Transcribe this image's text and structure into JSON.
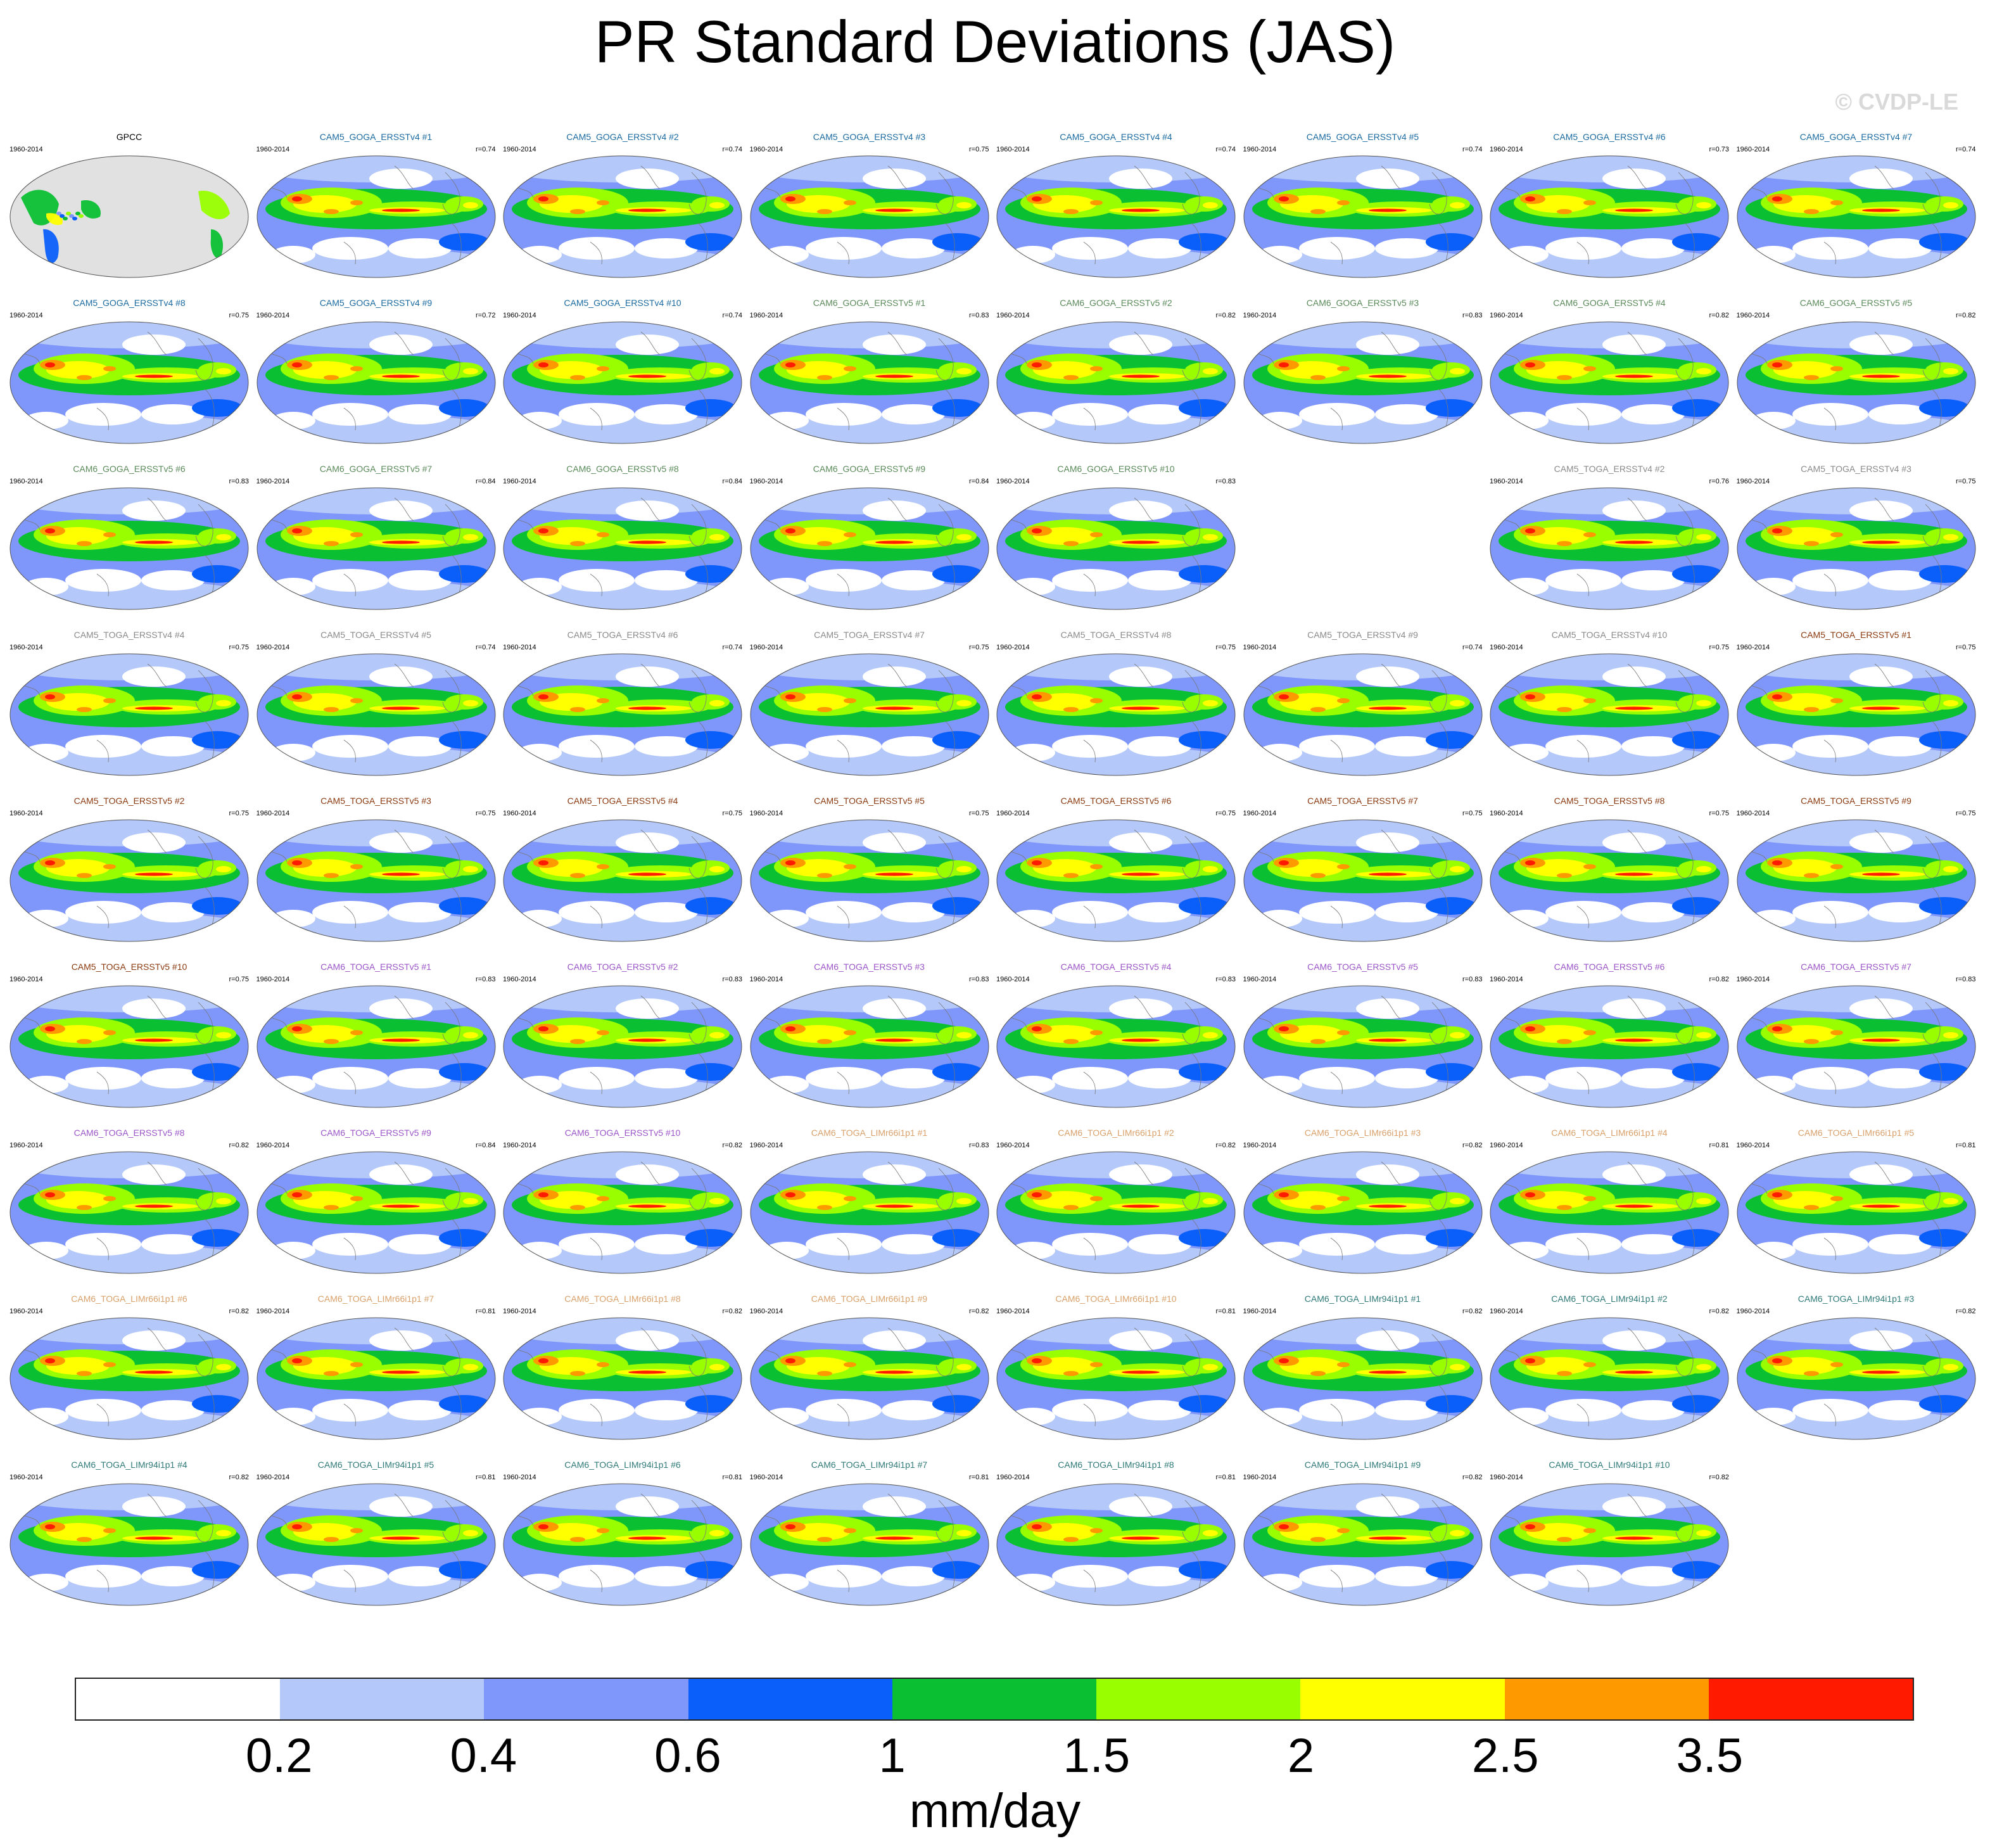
{
  "title": "PR Standard Deviations (JAS)",
  "watermark": "© CVDP-LE",
  "period": "1960-2014",
  "panels": [
    {
      "name": "GPCC",
      "r": "",
      "color": "#000000",
      "obs": true
    },
    {
      "name": "CAM5_GOGA_ERSSTv4 #1",
      "r": "r=0.74",
      "color": "#1a6aa0"
    },
    {
      "name": "CAM5_GOGA_ERSSTv4 #2",
      "r": "r=0.74",
      "color": "#1a6aa0"
    },
    {
      "name": "CAM5_GOGA_ERSSTv4 #3",
      "r": "r=0.75",
      "color": "#1a6aa0"
    },
    {
      "name": "CAM5_GOGA_ERSSTv4 #4",
      "r": "r=0.74",
      "color": "#1a6aa0"
    },
    {
      "name": "CAM5_GOGA_ERSSTv4 #5",
      "r": "r=0.74",
      "color": "#1a6aa0"
    },
    {
      "name": "CAM5_GOGA_ERSSTv4 #6",
      "r": "r=0.73",
      "color": "#1a6aa0"
    },
    {
      "name": "CAM5_GOGA_ERSSTv4 #7",
      "r": "r=0.74",
      "color": "#1a6aa0"
    },
    {
      "name": "CAM5_GOGA_ERSSTv4 #8",
      "r": "r=0.75",
      "color": "#1a6aa0"
    },
    {
      "name": "CAM5_GOGA_ERSSTv4 #9",
      "r": "r=0.72",
      "color": "#1a6aa0"
    },
    {
      "name": "CAM5_GOGA_ERSSTv4 #10",
      "r": "r=0.74",
      "color": "#1a6aa0"
    },
    {
      "name": "CAM6_GOGA_ERSSTv5 #1",
      "r": "r=0.83",
      "color": "#5a8a5a"
    },
    {
      "name": "CAM6_GOGA_ERSSTv5 #2",
      "r": "r=0.82",
      "color": "#5a8a5a"
    },
    {
      "name": "CAM6_GOGA_ERSSTv5 #3",
      "r": "r=0.83",
      "color": "#5a8a5a"
    },
    {
      "name": "CAM6_GOGA_ERSSTv5 #4",
      "r": "r=0.82",
      "color": "#5a8a5a"
    },
    {
      "name": "CAM6_GOGA_ERSSTv5 #5",
      "r": "r=0.82",
      "color": "#5a8a5a"
    },
    {
      "name": "CAM6_GOGA_ERSSTv5 #6",
      "r": "r=0.83",
      "color": "#5a8a5a"
    },
    {
      "name": "CAM6_GOGA_ERSSTv5 #7",
      "r": "r=0.84",
      "color": "#5a8a5a"
    },
    {
      "name": "CAM6_GOGA_ERSSTv5 #8",
      "r": "r=0.84",
      "color": "#5a8a5a"
    },
    {
      "name": "CAM6_GOGA_ERSSTv5 #9",
      "r": "r=0.84",
      "color": "#5a8a5a"
    },
    {
      "name": "CAM6_GOGA_ERSSTv5 #10",
      "r": "r=0.83",
      "color": "#5a8a5a"
    },
    {
      "name": "",
      "r": "",
      "color": "",
      "blank": true
    },
    {
      "name": "CAM5_TOGA_ERSSTv4 #2",
      "r": "r=0.76",
      "color": "#8a8a8a"
    },
    {
      "name": "CAM5_TOGA_ERSSTv4 #3",
      "r": "r=0.75",
      "color": "#8a8a8a"
    },
    {
      "name": "CAM5_TOGA_ERSSTv4 #4",
      "r": "r=0.75",
      "color": "#8a8a8a"
    },
    {
      "name": "CAM5_TOGA_ERSSTv4 #5",
      "r": "r=0.74",
      "color": "#8a8a8a"
    },
    {
      "name": "CAM5_TOGA_ERSSTv4 #6",
      "r": "r=0.74",
      "color": "#8a8a8a"
    },
    {
      "name": "CAM5_TOGA_ERSSTv4 #7",
      "r": "r=0.75",
      "color": "#8a8a8a"
    },
    {
      "name": "CAM5_TOGA_ERSSTv4 #8",
      "r": "r=0.75",
      "color": "#8a8a8a"
    },
    {
      "name": "CAM5_TOGA_ERSSTv4 #9",
      "r": "r=0.74",
      "color": "#8a8a8a"
    },
    {
      "name": "CAM5_TOGA_ERSSTv4 #10",
      "r": "r=0.75",
      "color": "#8a8a8a"
    },
    {
      "name": "CAM5_TOGA_ERSSTv5 #1",
      "r": "r=0.75",
      "color": "#8b3a10"
    },
    {
      "name": "CAM5_TOGA_ERSSTv5 #2",
      "r": "r=0.75",
      "color": "#8b3a10"
    },
    {
      "name": "CAM5_TOGA_ERSSTv5 #3",
      "r": "r=0.75",
      "color": "#8b3a10"
    },
    {
      "name": "CAM5_TOGA_ERSSTv5 #4",
      "r": "r=0.75",
      "color": "#8b3a10"
    },
    {
      "name": "CAM5_TOGA_ERSSTv5 #5",
      "r": "r=0.75",
      "color": "#8b3a10"
    },
    {
      "name": "CAM5_TOGA_ERSSTv5 #6",
      "r": "r=0.75",
      "color": "#8b3a10"
    },
    {
      "name": "CAM5_TOGA_ERSSTv5 #7",
      "r": "r=0.75",
      "color": "#8b3a10"
    },
    {
      "name": "CAM5_TOGA_ERSSTv5 #8",
      "r": "r=0.75",
      "color": "#8b3a10"
    },
    {
      "name": "CAM5_TOGA_ERSSTv5 #9",
      "r": "r=0.75",
      "color": "#8b3a10"
    },
    {
      "name": "CAM5_TOGA_ERSSTv5 #10",
      "r": "r=0.75",
      "color": "#8b3a10"
    },
    {
      "name": "CAM6_TOGA_ERSSTv5 #1",
      "r": "r=0.83",
      "color": "#9b55c8"
    },
    {
      "name": "CAM6_TOGA_ERSSTv5 #2",
      "r": "r=0.83",
      "color": "#9b55c8"
    },
    {
      "name": "CAM6_TOGA_ERSSTv5 #3",
      "r": "r=0.83",
      "color": "#9b55c8"
    },
    {
      "name": "CAM6_TOGA_ERSSTv5 #4",
      "r": "r=0.83",
      "color": "#9b55c8"
    },
    {
      "name": "CAM6_TOGA_ERSSTv5 #5",
      "r": "r=0.83",
      "color": "#9b55c8"
    },
    {
      "name": "CAM6_TOGA_ERSSTv5 #6",
      "r": "r=0.82",
      "color": "#9b55c8"
    },
    {
      "name": "CAM6_TOGA_ERSSTv5 #7",
      "r": "r=0.83",
      "color": "#9b55c8"
    },
    {
      "name": "CAM6_TOGA_ERSSTv5 #8",
      "r": "r=0.82",
      "color": "#9b55c8"
    },
    {
      "name": "CAM6_TOGA_ERSSTv5 #9",
      "r": "r=0.84",
      "color": "#9b55c8"
    },
    {
      "name": "CAM6_TOGA_ERSSTv5 #10",
      "r": "r=0.82",
      "color": "#9b55c8"
    },
    {
      "name": "CAM6_TOGA_LIMr66i1p1 #1",
      "r": "r=0.83",
      "color": "#d9a06a"
    },
    {
      "name": "CAM6_TOGA_LIMr66i1p1 #2",
      "r": "r=0.82",
      "color": "#d9a06a"
    },
    {
      "name": "CAM6_TOGA_LIMr66i1p1 #3",
      "r": "r=0.82",
      "color": "#d9a06a"
    },
    {
      "name": "CAM6_TOGA_LIMr66i1p1 #4",
      "r": "r=0.81",
      "color": "#d9a06a"
    },
    {
      "name": "CAM6_TOGA_LIMr66i1p1 #5",
      "r": "r=0.81",
      "color": "#d9a06a"
    },
    {
      "name": "CAM6_TOGA_LIMr66i1p1 #6",
      "r": "r=0.82",
      "color": "#d9a06a"
    },
    {
      "name": "CAM6_TOGA_LIMr66i1p1 #7",
      "r": "r=0.81",
      "color": "#d9a06a"
    },
    {
      "name": "CAM6_TOGA_LIMr66i1p1 #8",
      "r": "r=0.82",
      "color": "#d9a06a"
    },
    {
      "name": "CAM6_TOGA_LIMr66i1p1 #9",
      "r": "r=0.82",
      "color": "#d9a06a"
    },
    {
      "name": "CAM6_TOGA_LIMr66i1p1 #10",
      "r": "r=0.81",
      "color": "#d9a06a"
    },
    {
      "name": "CAM6_TOGA_LIMr94i1p1 #1",
      "r": "r=0.82",
      "color": "#2f7a78"
    },
    {
      "name": "CAM6_TOGA_LIMr94i1p1 #2",
      "r": "r=0.82",
      "color": "#2f7a78"
    },
    {
      "name": "CAM6_TOGA_LIMr94i1p1 #3",
      "r": "r=0.82",
      "color": "#2f7a78"
    },
    {
      "name": "CAM6_TOGA_LIMr94i1p1 #4",
      "r": "r=0.82",
      "color": "#2f7a78"
    },
    {
      "name": "CAM6_TOGA_LIMr94i1p1 #5",
      "r": "r=0.81",
      "color": "#2f7a78"
    },
    {
      "name": "CAM6_TOGA_LIMr94i1p1 #6",
      "r": "r=0.81",
      "color": "#2f7a78"
    },
    {
      "name": "CAM6_TOGA_LIMr94i1p1 #7",
      "r": "r=0.81",
      "color": "#2f7a78"
    },
    {
      "name": "CAM6_TOGA_LIMr94i1p1 #8",
      "r": "r=0.81",
      "color": "#2f7a78"
    },
    {
      "name": "CAM6_TOGA_LIMr94i1p1 #9",
      "r": "r=0.82",
      "color": "#2f7a78"
    },
    {
      "name": "CAM6_TOGA_LIMr94i1p1 #10",
      "r": "r=0.82",
      "color": "#2f7a78"
    }
  ],
  "colorbar": {
    "colors": [
      "#ffffff",
      "#b4c8fa",
      "#7f96fa",
      "#0a5ffa",
      "#0bbf32",
      "#99ff00",
      "#ffff00",
      "#ff9900",
      "#ff1a00"
    ],
    "labels": [
      "0.2",
      "0.4",
      "0.6",
      "1",
      "1.5",
      "2",
      "2.5",
      "3.5"
    ],
    "units": "mm/day"
  }
}
